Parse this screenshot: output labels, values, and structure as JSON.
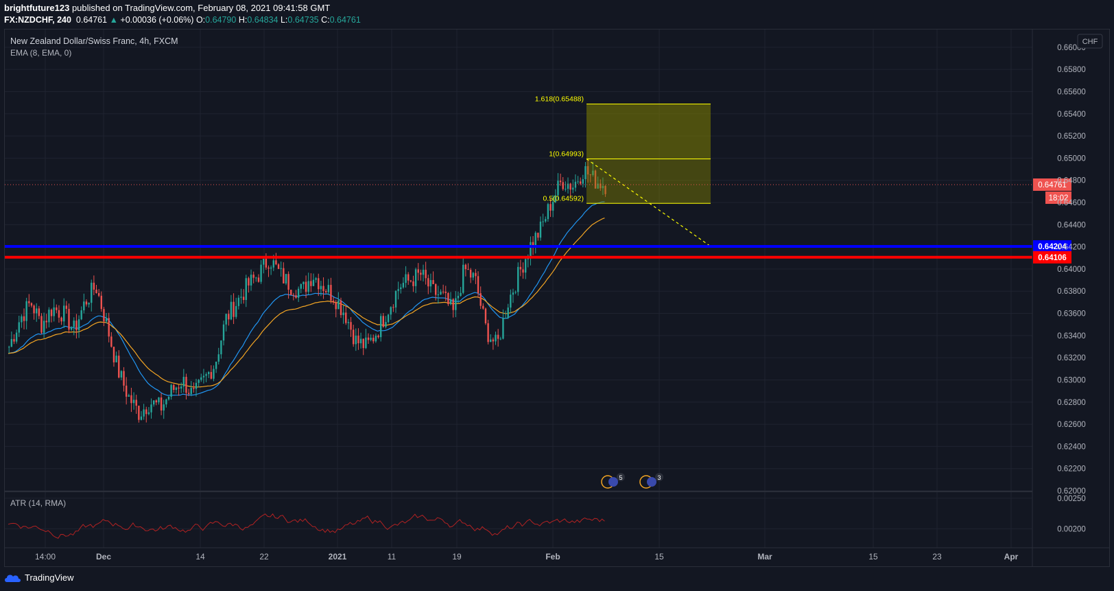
{
  "header": {
    "author": "brightfuture123",
    "published_text": " published on TradingView.com, February 08, 2021 09:41:58 GMT",
    "symbol_interval": "FX:NZDCHF, 240",
    "last_price": "0.64761",
    "change_arrow": "▲",
    "change": "+0.00036 (+0.06%)",
    "open_label": "O:",
    "open": "0.64790",
    "high_label": "H:",
    "high": "0.64834",
    "low_label": "L:",
    "low": "0.64735",
    "close_label": "C:",
    "close": "0.64761"
  },
  "legend": {
    "title": "New Zealand Dollar/Swiss Franc, 4h, FXCM",
    "ema": "EMA (8, EMA, 0)",
    "atr": "ATR (14, RMA)"
  },
  "currency_badge": "CHF",
  "footer": {
    "brand": "TradingView"
  },
  "colors": {
    "background": "#131722",
    "up": "#26a69a",
    "down": "#ef5350",
    "support_blue": "#0000ff",
    "support_red": "#ff0000",
    "fib_zone": "#808000",
    "fib_text": "#ffff00",
    "ema_blue": "#2196f3",
    "ema_orange": "#f5a623",
    "atr_line": "#b22222"
  },
  "chart_data": {
    "type": "candlestick",
    "symbol": "NZDCHF",
    "interval": "4h",
    "y_axis": {
      "ticks": [
        "0.62000",
        "0.62200",
        "0.62400",
        "0.62600",
        "0.62800",
        "0.63000",
        "0.63200",
        "0.63400",
        "0.63600",
        "0.63800",
        "0.64000",
        "0.64200",
        "0.64400",
        "0.64600",
        "0.64800",
        "0.65000",
        "0.65200",
        "0.65400",
        "0.65600",
        "0.65800",
        "0.66000"
      ],
      "range": [
        0.62,
        0.6616
      ]
    },
    "x_axis": {
      "ticks": [
        "14:00",
        "Dec",
        "14",
        "22",
        "2021",
        "11",
        "19",
        "Feb",
        "15",
        "Mar",
        "15",
        "23",
        "Apr"
      ]
    },
    "horizontal_levels": [
      {
        "label": "0.64204",
        "value": 0.64204,
        "color": "#0000ff"
      },
      {
        "label": "0.64106",
        "value": 0.64106,
        "color": "#ff0000"
      }
    ],
    "current_price": {
      "label": "0.64761",
      "value": 0.64761,
      "countdown": "18:02"
    },
    "fibonacci": [
      {
        "label": "1.618(0.65488)",
        "value": 0.65488
      },
      {
        "label": "1(0.64993)",
        "value": 0.64993
      },
      {
        "label": "0.5(0.64592)",
        "value": 0.64592
      }
    ],
    "close_series_approx": [
      0.633,
      0.6355,
      0.637,
      0.635,
      0.6365,
      0.636,
      0.6345,
      0.637,
      0.6385,
      0.635,
      0.631,
      0.6285,
      0.627,
      0.628,
      0.6275,
      0.629,
      0.63,
      0.6285,
      0.63,
      0.6315,
      0.6355,
      0.637,
      0.6385,
      0.6395,
      0.641,
      0.6395,
      0.6385,
      0.638,
      0.6395,
      0.6385,
      0.6375,
      0.636,
      0.6335,
      0.633,
      0.6345,
      0.6365,
      0.6385,
      0.639,
      0.6395,
      0.638,
      0.6375,
      0.636,
      0.64,
      0.639,
      0.6345,
      0.633,
      0.637,
      0.6395,
      0.642,
      0.6435,
      0.646,
      0.648,
      0.6475,
      0.649,
      0.648,
      0.6476
    ],
    "atr": {
      "ticks": [
        "0.00250",
        "0.00200"
      ],
      "range": [
        0.0017,
        0.0026
      ]
    }
  },
  "events": [
    {
      "icon": "swiss-flag-icon",
      "count": "5"
    },
    {
      "icon": "nz-flag-icon",
      "count": "3"
    }
  ]
}
